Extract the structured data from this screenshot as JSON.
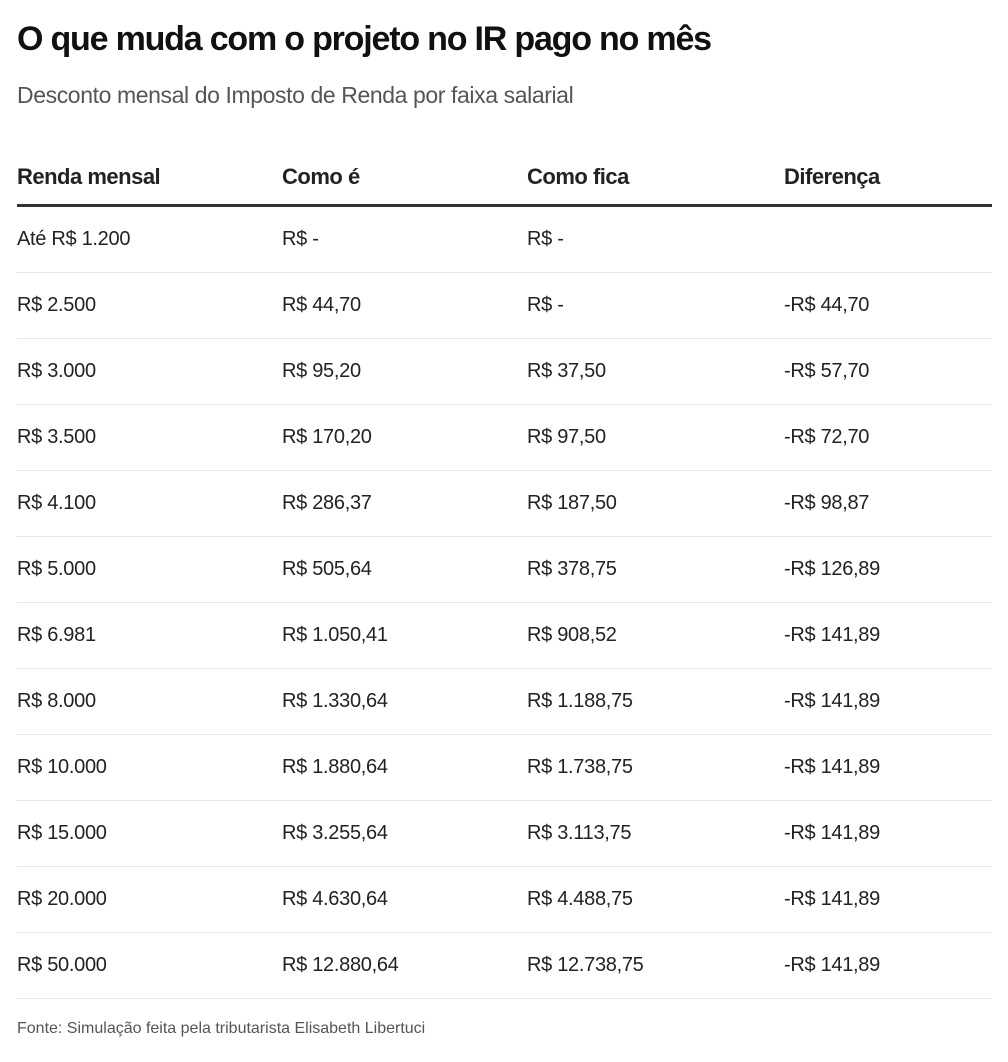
{
  "title": "O que muda com o projeto no IR pago no mês",
  "subtitle": "Desconto mensal do Imposto de Renda por faixa salarial",
  "footer": "Fonte: Simulação feita pela tributarista Elisabeth Libertuci",
  "chart_data": {
    "type": "table",
    "columns": [
      "Renda mensal",
      "Como é",
      "Como fica",
      "Diferença"
    ],
    "rows": [
      [
        "Até R$ 1.200",
        "R$ -",
        "R$ -",
        ""
      ],
      [
        "R$ 2.500",
        "R$ 44,70",
        "R$ -",
        "-R$ 44,70"
      ],
      [
        "R$ 3.000",
        "R$ 95,20",
        "R$ 37,50",
        "-R$ 57,70"
      ],
      [
        "R$ 3.500",
        "R$ 170,20",
        "R$ 97,50",
        "-R$ 72,70"
      ],
      [
        "R$ 4.100",
        "R$ 286,37",
        "R$ 187,50",
        "-R$ 98,87"
      ],
      [
        "R$ 5.000",
        "R$ 505,64",
        "R$ 378,75",
        "-R$ 126,89"
      ],
      [
        "R$ 6.981",
        "R$ 1.050,41",
        "R$ 908,52",
        "-R$ 141,89"
      ],
      [
        "R$ 8.000",
        "R$ 1.330,64",
        "R$ 1.188,75",
        "-R$ 141,89"
      ],
      [
        "R$ 10.000",
        "R$ 1.880,64",
        "R$ 1.738,75",
        "-R$ 141,89"
      ],
      [
        "R$ 15.000",
        "R$ 3.255,64",
        "R$ 3.113,75",
        "-R$ 141,89"
      ],
      [
        "R$ 20.000",
        "R$ 4.630,64",
        "R$ 4.488,75",
        "-R$ 141,89"
      ],
      [
        "R$ 50.000",
        "R$ 12.880,64",
        "R$ 12.738,75",
        "-R$ 141,89"
      ]
    ]
  }
}
